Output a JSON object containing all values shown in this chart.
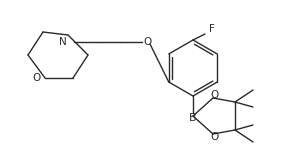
{
  "bg_color": "#ffffff",
  "line_color": "#2a2a2a",
  "line_width": 1.0,
  "font_size": 7.5,
  "figsize": [
    3.01,
    1.46
  ],
  "dpi": 100,
  "xlim": [
    0,
    301
  ],
  "ylim": [
    0,
    146
  ]
}
